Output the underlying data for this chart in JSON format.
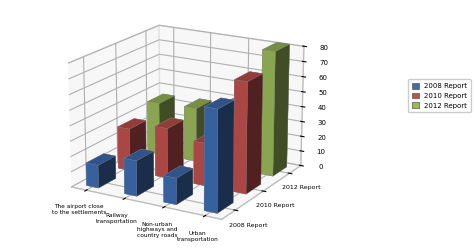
{
  "categories": [
    "The airport close\nto the settlements",
    "Railway\ntransportation",
    "Non-urban\nhighways and\ncountry roads",
    "Urban\ntransportation"
  ],
  "series": [
    "2008 Report",
    "2010 Report",
    "2012 Report"
  ],
  "values": [
    [
      15,
      28,
      35
    ],
    [
      23,
      33,
      36
    ],
    [
      17,
      28,
      42
    ],
    [
      65,
      72,
      82
    ]
  ],
  "colors": [
    "#3E6DB4",
    "#C0504D",
    "#9BBB59"
  ],
  "legend_labels": [
    "2008 Report",
    "2010 Report",
    "2012 Report"
  ],
  "zlim": [
    0,
    80
  ],
  "zticks": [
    0,
    10,
    20,
    30,
    40,
    50,
    60,
    70,
    80
  ],
  "background_color": "#ffffff",
  "depth_axis_labels": [
    "2008 Report",
    "2010 Report",
    "2012 Report"
  ],
  "elev": 18,
  "azim": -60
}
